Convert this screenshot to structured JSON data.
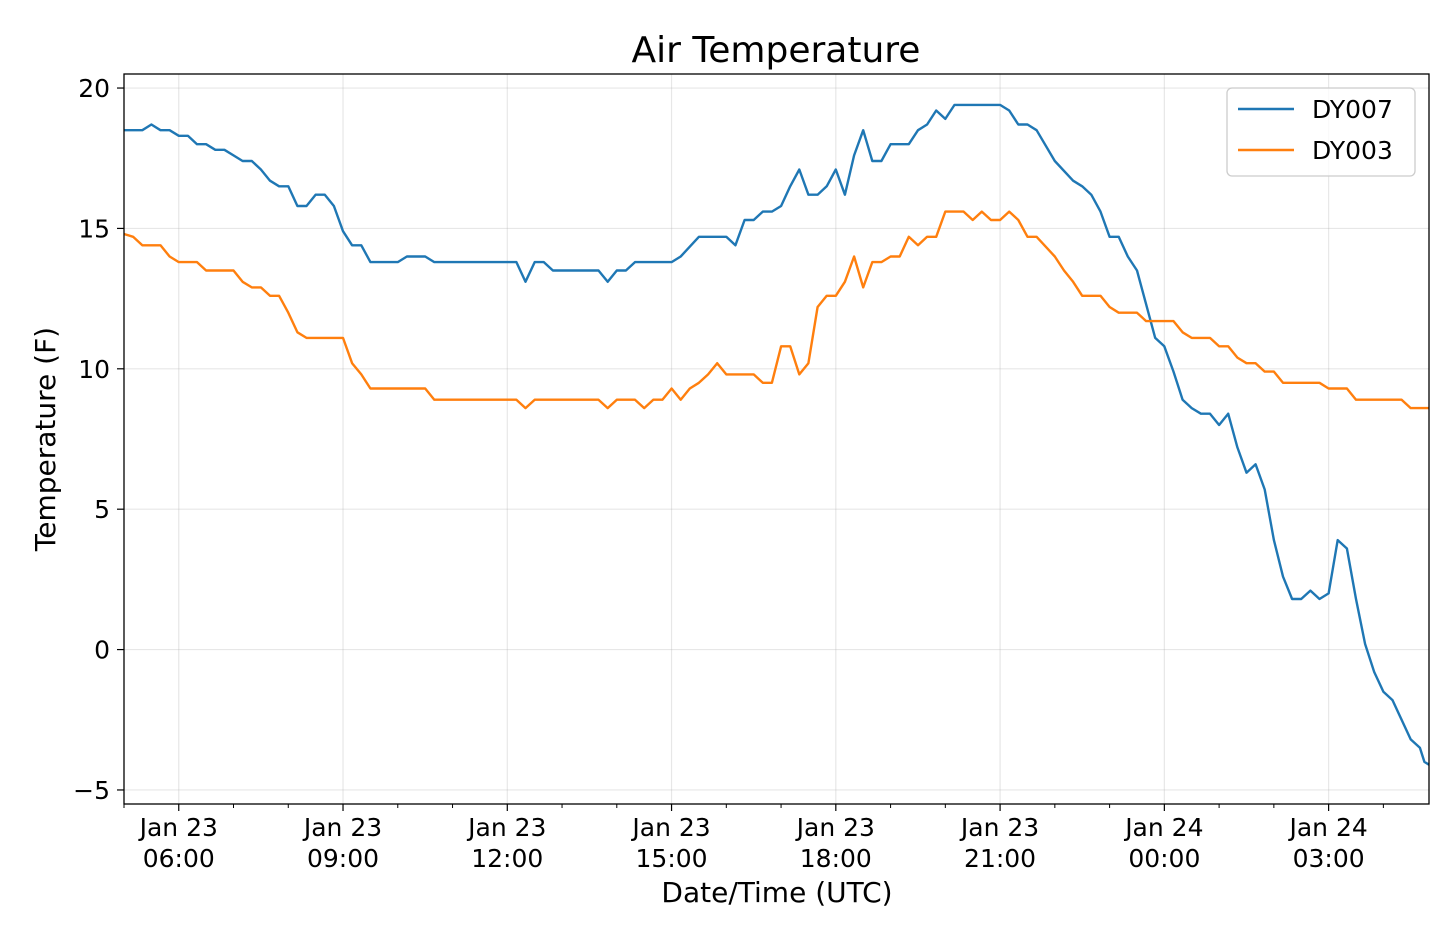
{
  "chart_data": {
    "type": "line",
    "title": "Air Temperature",
    "xlabel": "Date/Time (UTC)",
    "ylabel": "Temperature (F)",
    "x_unit": "datetime UTC",
    "xlim": [
      "2019-01-23T05:00",
      "2019-01-24T04:50"
    ],
    "ylim": [
      -5.5,
      20.5
    ],
    "yticks": [
      -5,
      0,
      5,
      10,
      15,
      20
    ],
    "xticks": [
      {
        "at": "2019-01-23T06:00",
        "line1": "Jan 23",
        "line2": "06:00"
      },
      {
        "at": "2019-01-23T09:00",
        "line1": "Jan 23",
        "line2": "09:00"
      },
      {
        "at": "2019-01-23T12:00",
        "line1": "Jan 23",
        "line2": "12:00"
      },
      {
        "at": "2019-01-23T15:00",
        "line1": "Jan 23",
        "line2": "15:00"
      },
      {
        "at": "2019-01-23T18:00",
        "line1": "Jan 23",
        "line2": "18:00"
      },
      {
        "at": "2019-01-23T21:00",
        "line1": "Jan 23",
        "line2": "21:00"
      },
      {
        "at": "2019-01-24T00:00",
        "line1": "Jan 24",
        "line2": "00:00"
      },
      {
        "at": "2019-01-24T03:00",
        "line1": "Jan 24",
        "line2": "03:00"
      }
    ],
    "grid": true,
    "legend_position": "top-right",
    "series": [
      {
        "name": "DY007",
        "color": "#1f77b4",
        "points": [
          [
            "2019-01-23T05:00",
            18.5
          ],
          [
            "2019-01-23T05:20",
            18.5
          ],
          [
            "2019-01-23T05:30",
            18.7
          ],
          [
            "2019-01-23T05:40",
            18.5
          ],
          [
            "2019-01-23T05:50",
            18.5
          ],
          [
            "2019-01-23T06:00",
            18.3
          ],
          [
            "2019-01-23T06:10",
            18.3
          ],
          [
            "2019-01-23T06:20",
            18.0
          ],
          [
            "2019-01-23T06:30",
            18.0
          ],
          [
            "2019-01-23T06:40",
            17.8
          ],
          [
            "2019-01-23T06:50",
            17.8
          ],
          [
            "2019-01-23T07:00",
            17.6
          ],
          [
            "2019-01-23T07:10",
            17.4
          ],
          [
            "2019-01-23T07:20",
            17.4
          ],
          [
            "2019-01-23T07:30",
            17.1
          ],
          [
            "2019-01-23T07:40",
            16.7
          ],
          [
            "2019-01-23T07:50",
            16.5
          ],
          [
            "2019-01-23T08:00",
            16.5
          ],
          [
            "2019-01-23T08:10",
            15.8
          ],
          [
            "2019-01-23T08:20",
            15.8
          ],
          [
            "2019-01-23T08:30",
            16.2
          ],
          [
            "2019-01-23T08:40",
            16.2
          ],
          [
            "2019-01-23T08:50",
            15.8
          ],
          [
            "2019-01-23T09:00",
            14.9
          ],
          [
            "2019-01-23T09:10",
            14.4
          ],
          [
            "2019-01-23T09:20",
            14.4
          ],
          [
            "2019-01-23T09:30",
            13.8
          ],
          [
            "2019-01-23T10:00",
            13.8
          ],
          [
            "2019-01-23T10:10",
            14.0
          ],
          [
            "2019-01-23T10:30",
            14.0
          ],
          [
            "2019-01-23T10:40",
            13.8
          ],
          [
            "2019-01-23T11:50",
            13.8
          ],
          [
            "2019-01-23T12:10",
            13.8
          ],
          [
            "2019-01-23T12:20",
            13.1
          ],
          [
            "2019-01-23T12:30",
            13.8
          ],
          [
            "2019-01-23T12:40",
            13.8
          ],
          [
            "2019-01-23T12:50",
            13.5
          ],
          [
            "2019-01-23T13:40",
            13.5
          ],
          [
            "2019-01-23T13:50",
            13.1
          ],
          [
            "2019-01-23T14:00",
            13.5
          ],
          [
            "2019-01-23T14:10",
            13.5
          ],
          [
            "2019-01-23T14:20",
            13.8
          ],
          [
            "2019-01-23T15:00",
            13.8
          ],
          [
            "2019-01-23T15:10",
            14.0
          ],
          [
            "2019-01-23T15:30",
            14.7
          ],
          [
            "2019-01-23T16:00",
            14.7
          ],
          [
            "2019-01-23T16:10",
            14.4
          ],
          [
            "2019-01-23T16:20",
            15.3
          ],
          [
            "2019-01-23T16:30",
            15.3
          ],
          [
            "2019-01-23T16:40",
            15.6
          ],
          [
            "2019-01-23T16:50",
            15.6
          ],
          [
            "2019-01-23T17:00",
            15.8
          ],
          [
            "2019-01-23T17:10",
            16.5
          ],
          [
            "2019-01-23T17:20",
            17.1
          ],
          [
            "2019-01-23T17:30",
            16.2
          ],
          [
            "2019-01-23T17:40",
            16.2
          ],
          [
            "2019-01-23T17:50",
            16.5
          ],
          [
            "2019-01-23T18:00",
            17.1
          ],
          [
            "2019-01-23T18:10",
            16.2
          ],
          [
            "2019-01-23T18:20",
            17.6
          ],
          [
            "2019-01-23T18:30",
            18.5
          ],
          [
            "2019-01-23T18:40",
            17.4
          ],
          [
            "2019-01-23T18:50",
            17.4
          ],
          [
            "2019-01-23T19:00",
            18.0
          ],
          [
            "2019-01-23T19:20",
            18.0
          ],
          [
            "2019-01-23T19:30",
            18.5
          ],
          [
            "2019-01-23T19:40",
            18.7
          ],
          [
            "2019-01-23T19:50",
            19.2
          ],
          [
            "2019-01-23T20:00",
            18.9
          ],
          [
            "2019-01-23T20:10",
            19.4
          ],
          [
            "2019-01-23T21:00",
            19.4
          ],
          [
            "2019-01-23T21:10",
            19.2
          ],
          [
            "2019-01-23T21:20",
            18.7
          ],
          [
            "2019-01-23T21:30",
            18.7
          ],
          [
            "2019-01-23T21:40",
            18.5
          ],
          [
            "2019-01-23T22:00",
            17.4
          ],
          [
            "2019-01-23T22:20",
            16.7
          ],
          [
            "2019-01-23T22:30",
            16.5
          ],
          [
            "2019-01-23T22:40",
            16.2
          ],
          [
            "2019-01-23T22:50",
            15.6
          ],
          [
            "2019-01-23T23:00",
            14.7
          ],
          [
            "2019-01-23T23:10",
            14.7
          ],
          [
            "2019-01-23T23:20",
            14.0
          ],
          [
            "2019-01-23T23:30",
            13.5
          ],
          [
            "2019-01-23T23:40",
            12.3
          ],
          [
            "2019-01-23T23:50",
            11.1
          ],
          [
            "2019-01-24T00:00",
            10.8
          ],
          [
            "2019-01-24T00:10",
            9.9
          ],
          [
            "2019-01-24T00:20",
            8.9
          ],
          [
            "2019-01-24T00:30",
            8.6
          ],
          [
            "2019-01-24T00:40",
            8.4
          ],
          [
            "2019-01-24T00:50",
            8.4
          ],
          [
            "2019-01-24T01:00",
            8.0
          ],
          [
            "2019-01-24T01:10",
            8.4
          ],
          [
            "2019-01-24T01:20",
            7.2
          ],
          [
            "2019-01-24T01:30",
            6.3
          ],
          [
            "2019-01-24T01:40",
            6.6
          ],
          [
            "2019-01-24T01:50",
            5.7
          ],
          [
            "2019-01-24T02:00",
            3.9
          ],
          [
            "2019-01-24T02:10",
            2.6
          ],
          [
            "2019-01-24T02:20",
            1.8
          ],
          [
            "2019-01-24T02:30",
            1.8
          ],
          [
            "2019-01-24T02:40",
            2.1
          ],
          [
            "2019-01-24T02:50",
            1.8
          ],
          [
            "2019-01-24T03:00",
            2.0
          ],
          [
            "2019-01-24T03:10",
            3.9
          ],
          [
            "2019-01-24T03:20",
            3.6
          ],
          [
            "2019-01-24T03:30",
            1.8
          ],
          [
            "2019-01-24T03:40",
            0.2
          ],
          [
            "2019-01-24T03:50",
            -0.8
          ],
          [
            "2019-01-24T04:00",
            -1.5
          ],
          [
            "2019-01-24T04:10",
            -1.8
          ],
          [
            "2019-01-24T04:20",
            -2.5
          ],
          [
            "2019-01-24T04:30",
            -3.2
          ],
          [
            "2019-01-24T04:40",
            -3.5
          ],
          [
            "2019-01-24T04:45",
            -4.0
          ],
          [
            "2019-01-24T04:50",
            -4.1
          ]
        ]
      },
      {
        "name": "DY003",
        "color": "#ff7f0e",
        "points": [
          [
            "2019-01-23T05:00",
            14.8
          ],
          [
            "2019-01-23T05:10",
            14.7
          ],
          [
            "2019-01-23T05:20",
            14.4
          ],
          [
            "2019-01-23T05:40",
            14.4
          ],
          [
            "2019-01-23T05:50",
            14.0
          ],
          [
            "2019-01-23T06:00",
            13.8
          ],
          [
            "2019-01-23T06:20",
            13.8
          ],
          [
            "2019-01-23T06:30",
            13.5
          ],
          [
            "2019-01-23T07:00",
            13.5
          ],
          [
            "2019-01-23T07:10",
            13.1
          ],
          [
            "2019-01-23T07:20",
            12.9
          ],
          [
            "2019-01-23T07:30",
            12.9
          ],
          [
            "2019-01-23T07:40",
            12.6
          ],
          [
            "2019-01-23T07:50",
            12.6
          ],
          [
            "2019-01-23T08:00",
            12.0
          ],
          [
            "2019-01-23T08:10",
            11.3
          ],
          [
            "2019-01-23T08:20",
            11.1
          ],
          [
            "2019-01-23T09:00",
            11.1
          ],
          [
            "2019-01-23T09:10",
            10.2
          ],
          [
            "2019-01-23T09:20",
            9.8
          ],
          [
            "2019-01-23T09:30",
            9.3
          ],
          [
            "2019-01-23T10:30",
            9.3
          ],
          [
            "2019-01-23T10:40",
            8.9
          ],
          [
            "2019-01-23T12:10",
            8.9
          ],
          [
            "2019-01-23T12:20",
            8.6
          ],
          [
            "2019-01-23T12:30",
            8.9
          ],
          [
            "2019-01-23T13:40",
            8.9
          ],
          [
            "2019-01-23T13:50",
            8.6
          ],
          [
            "2019-01-23T14:00",
            8.9
          ],
          [
            "2019-01-23T14:20",
            8.9
          ],
          [
            "2019-01-23T14:30",
            8.6
          ],
          [
            "2019-01-23T14:40",
            8.9
          ],
          [
            "2019-01-23T14:50",
            8.9
          ],
          [
            "2019-01-23T15:00",
            9.3
          ],
          [
            "2019-01-23T15:10",
            8.9
          ],
          [
            "2019-01-23T15:20",
            9.3
          ],
          [
            "2019-01-23T15:30",
            9.5
          ],
          [
            "2019-01-23T15:40",
            9.8
          ],
          [
            "2019-01-23T15:50",
            10.2
          ],
          [
            "2019-01-23T16:00",
            9.8
          ],
          [
            "2019-01-23T16:30",
            9.8
          ],
          [
            "2019-01-23T16:40",
            9.5
          ],
          [
            "2019-01-23T16:50",
            9.5
          ],
          [
            "2019-01-23T17:00",
            10.8
          ],
          [
            "2019-01-23T17:10",
            10.8
          ],
          [
            "2019-01-23T17:20",
            9.8
          ],
          [
            "2019-01-23T17:30",
            10.2
          ],
          [
            "2019-01-23T17:40",
            12.2
          ],
          [
            "2019-01-23T17:50",
            12.6
          ],
          [
            "2019-01-23T18:00",
            12.6
          ],
          [
            "2019-01-23T18:10",
            13.1
          ],
          [
            "2019-01-23T18:20",
            14.0
          ],
          [
            "2019-01-23T18:30",
            12.9
          ],
          [
            "2019-01-23T18:40",
            13.8
          ],
          [
            "2019-01-23T18:50",
            13.8
          ],
          [
            "2019-01-23T19:00",
            14.0
          ],
          [
            "2019-01-23T19:10",
            14.0
          ],
          [
            "2019-01-23T19:20",
            14.7
          ],
          [
            "2019-01-23T19:30",
            14.4
          ],
          [
            "2019-01-23T19:40",
            14.7
          ],
          [
            "2019-01-23T19:50",
            14.7
          ],
          [
            "2019-01-23T20:00",
            15.6
          ],
          [
            "2019-01-23T20:20",
            15.6
          ],
          [
            "2019-01-23T20:30",
            15.3
          ],
          [
            "2019-01-23T20:40",
            15.6
          ],
          [
            "2019-01-23T20:50",
            15.3
          ],
          [
            "2019-01-23T21:00",
            15.3
          ],
          [
            "2019-01-23T21:10",
            15.6
          ],
          [
            "2019-01-23T21:20",
            15.3
          ],
          [
            "2019-01-23T21:30",
            14.7
          ],
          [
            "2019-01-23T21:40",
            14.7
          ],
          [
            "2019-01-23T22:00",
            14.0
          ],
          [
            "2019-01-23T22:10",
            13.5
          ],
          [
            "2019-01-23T22:20",
            13.1
          ],
          [
            "2019-01-23T22:30",
            12.6
          ],
          [
            "2019-01-23T22:50",
            12.6
          ],
          [
            "2019-01-23T23:00",
            12.2
          ],
          [
            "2019-01-23T23:10",
            12.0
          ],
          [
            "2019-01-23T23:30",
            12.0
          ],
          [
            "2019-01-23T23:40",
            11.7
          ],
          [
            "2019-01-24T00:10",
            11.7
          ],
          [
            "2019-01-24T00:20",
            11.3
          ],
          [
            "2019-01-24T00:30",
            11.1
          ],
          [
            "2019-01-24T00:50",
            11.1
          ],
          [
            "2019-01-24T01:00",
            10.8
          ],
          [
            "2019-01-24T01:10",
            10.8
          ],
          [
            "2019-01-24T01:20",
            10.4
          ],
          [
            "2019-01-24T01:30",
            10.2
          ],
          [
            "2019-01-24T01:40",
            10.2
          ],
          [
            "2019-01-24T01:50",
            9.9
          ],
          [
            "2019-01-24T02:00",
            9.9
          ],
          [
            "2019-01-24T02:10",
            9.5
          ],
          [
            "2019-01-24T02:50",
            9.5
          ],
          [
            "2019-01-24T03:00",
            9.3
          ],
          [
            "2019-01-24T03:20",
            9.3
          ],
          [
            "2019-01-24T03:30",
            8.9
          ],
          [
            "2019-01-24T04:10",
            8.9
          ],
          [
            "2019-01-24T04:20",
            8.9
          ],
          [
            "2019-01-24T04:30",
            8.6
          ],
          [
            "2019-01-24T04:50",
            8.6
          ]
        ]
      }
    ]
  }
}
